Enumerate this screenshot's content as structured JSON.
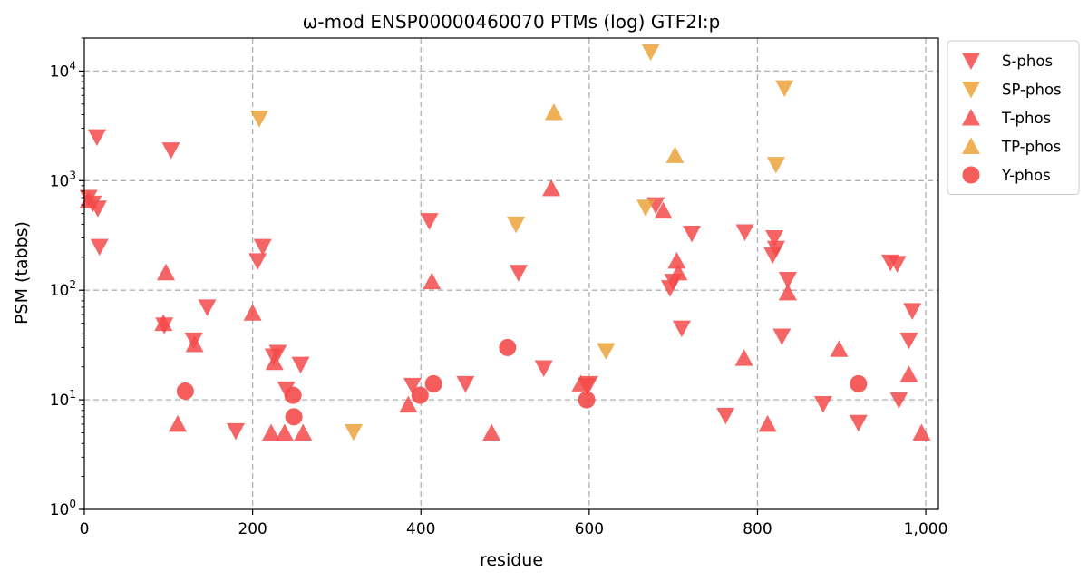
{
  "chart_data": {
    "type": "scatter",
    "title": "ω-mod ENSP00000460070 PTMs (log) GTF2I:p",
    "xlabel": "residue",
    "ylabel": "PSM (tabbs)",
    "xlim": [
      0,
      1015
    ],
    "ylim": [
      1,
      20000
    ],
    "yscale": "log",
    "x_ticks": [
      0,
      200,
      400,
      600,
      800,
      1000
    ],
    "x_tick_labels": [
      "0",
      "200",
      "400",
      "600",
      "800",
      "1,000"
    ],
    "y_ticks": [
      1,
      10,
      100,
      1000,
      10000
    ],
    "y_tick_labels": [
      {
        "base": "10",
        "exp": "0"
      },
      {
        "base": "10",
        "exp": "1"
      },
      {
        "base": "10",
        "exp": "2"
      },
      {
        "base": "10",
        "exp": "3"
      },
      {
        "base": "10",
        "exp": "4"
      }
    ],
    "grid": true,
    "legend_position": "outside-top-right",
    "series": [
      {
        "name": "S-phos",
        "marker": "triangle-down",
        "color": "#f44a4a",
        "points": [
          [
            5,
            700
          ],
          [
            10,
            620
          ],
          [
            16,
            560
          ],
          [
            15,
            2500
          ],
          [
            18,
            250
          ],
          [
            95,
            48
          ],
          [
            103,
            1900
          ],
          [
            130,
            35
          ],
          [
            146,
            70
          ],
          [
            180,
            5.2
          ],
          [
            206,
            185
          ],
          [
            212,
            250
          ],
          [
            225,
            25
          ],
          [
            230,
            27
          ],
          [
            240,
            12.5
          ],
          [
            257,
            21
          ],
          [
            390,
            13.5
          ],
          [
            410,
            430
          ],
          [
            453,
            14
          ],
          [
            516,
            145
          ],
          [
            546,
            19.5
          ],
          [
            597,
            13.5
          ],
          [
            600,
            14
          ],
          [
            679,
            600
          ],
          [
            696,
            105
          ],
          [
            700,
            120
          ],
          [
            710,
            45
          ],
          [
            722,
            330
          ],
          [
            762,
            7.2
          ],
          [
            785,
            340
          ],
          [
            818,
            210
          ],
          [
            820,
            300
          ],
          [
            822,
            240
          ],
          [
            829,
            38
          ],
          [
            836,
            125
          ],
          [
            878,
            9.2
          ],
          [
            920,
            6.2
          ],
          [
            958,
            180
          ],
          [
            966,
            175
          ],
          [
            968,
            10
          ],
          [
            980,
            35
          ],
          [
            984,
            65
          ]
        ]
      },
      {
        "name": "SP-phos",
        "marker": "triangle-down",
        "color": "#eca33b",
        "points": [
          [
            208,
            3700
          ],
          [
            320,
            5.1
          ],
          [
            513,
            400
          ],
          [
            620,
            28
          ],
          [
            667,
            570
          ],
          [
            673,
            15000
          ],
          [
            822,
            1400
          ],
          [
            832,
            7000
          ]
        ]
      },
      {
        "name": "T-phos",
        "marker": "triangle-up",
        "color": "#f44a4a",
        "points": [
          [
            5,
            660
          ],
          [
            94,
            50
          ],
          [
            97,
            145
          ],
          [
            111,
            6
          ],
          [
            131,
            32
          ],
          [
            200,
            62
          ],
          [
            222,
            5
          ],
          [
            226,
            22
          ],
          [
            238,
            5
          ],
          [
            260,
            5
          ],
          [
            385,
            9
          ],
          [
            413,
            120
          ],
          [
            484,
            5
          ],
          [
            555,
            850
          ],
          [
            590,
            14
          ],
          [
            688,
            530
          ],
          [
            704,
            185
          ],
          [
            706,
            145
          ],
          [
            784,
            24
          ],
          [
            812,
            6
          ],
          [
            836,
            95
          ],
          [
            897,
            29
          ],
          [
            980,
            17
          ],
          [
            995,
            5
          ]
        ]
      },
      {
        "name": "TP-phos",
        "marker": "triangle-up",
        "color": "#eca33b",
        "points": [
          [
            558,
            4200
          ],
          [
            702,
            1700
          ]
        ]
      },
      {
        "name": "Y-phos",
        "marker": "circle",
        "color": "#f44a4a",
        "points": [
          [
            120,
            12
          ],
          [
            248,
            11
          ],
          [
            249,
            7
          ],
          [
            399,
            11
          ],
          [
            415,
            14
          ],
          [
            503,
            30
          ],
          [
            597,
            10
          ],
          [
            920,
            14
          ]
        ]
      }
    ]
  }
}
